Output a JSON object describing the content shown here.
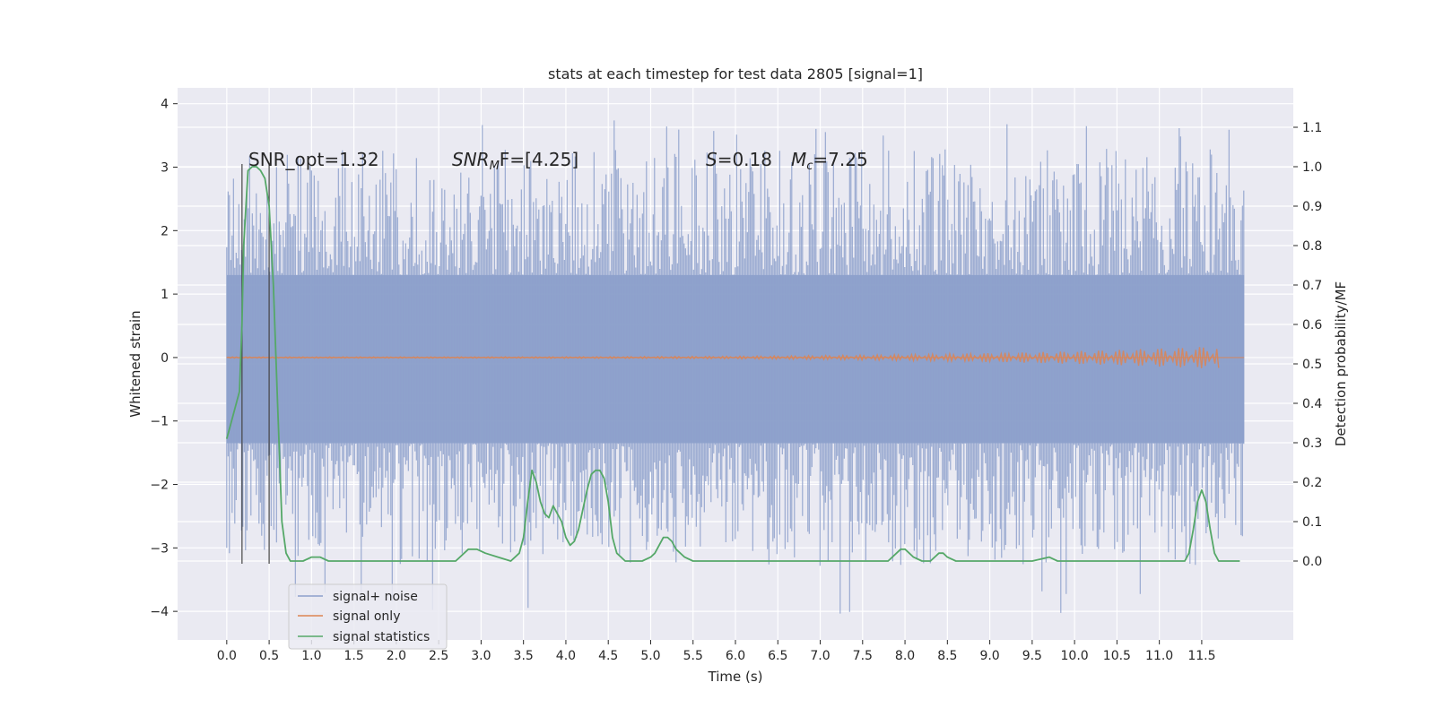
{
  "chart_data": {
    "type": "line",
    "title": "stats at each timestep for test data 2805 [signal=1]",
    "xlabel": "Time (s)",
    "ylabel": "Whitened strain",
    "ylabel_right": "Detection probability/MF",
    "xlim": [
      -0.58,
      12.58
    ],
    "ylim": [
      -4.45,
      4.25
    ],
    "ylim_right": [
      -0.2,
      1.2
    ],
    "grid": true,
    "legend_placement": "lower-left",
    "x_ticks": [
      "0.0",
      "0.5",
      "1.0",
      "1.5",
      "2.0",
      "2.5",
      "3.0",
      "3.5",
      "4.0",
      "4.5",
      "5.0",
      "5.5",
      "6.0",
      "6.5",
      "7.0",
      "7.5",
      "8.0",
      "8.5",
      "9.0",
      "9.5",
      "10.0",
      "10.5",
      "11.0",
      "11.5"
    ],
    "x_tick_values": [
      0,
      0.5,
      1,
      1.5,
      2,
      2.5,
      3,
      3.5,
      4,
      4.5,
      5,
      5.5,
      6,
      6.5,
      7,
      7.5,
      8,
      8.5,
      9,
      9.5,
      10,
      10.5,
      11,
      11.5
    ],
    "y_ticks": [
      "4",
      "3",
      "2",
      "1",
      "0",
      "−1",
      "−2",
      "−3",
      "−4"
    ],
    "y_tick_values": [
      4,
      3,
      2,
      1,
      0,
      -1,
      -2,
      -3,
      -4
    ],
    "y_right_ticks": [
      "1.1",
      "1.0",
      "0.9",
      "0.8",
      "0.7",
      "0.6",
      "0.5",
      "0.4",
      "0.3",
      "0.2",
      "0.1",
      "0.0"
    ],
    "y_right_tick_values": [
      1.1,
      1.0,
      0.9,
      0.8,
      0.7,
      0.6,
      0.5,
      0.4,
      0.3,
      0.2,
      0.1,
      0.0
    ],
    "annotations": {
      "snr_opt": "SNR_opt=1.32",
      "snr_mf_main": "SNR",
      "snr_mf_sub": "M",
      "snr_mf_rest": "F=[4.25]",
      "s_label": "S",
      "s_value": "=0.18",
      "mc_label": "M",
      "mc_sub": "c",
      "mc_value": "=7.25"
    },
    "vertical_markers_x": [
      0.18,
      0.5
    ],
    "series": [
      {
        "name": "signal+ noise",
        "color": "#8da0cb",
        "x_range": [
          0,
          12
        ],
        "band_low": -1.35,
        "band_high": 1.3,
        "spike_max": 3.85,
        "spike_min": -4.05
      },
      {
        "name": "signal only",
        "color": "#dd8452",
        "x_range": [
          0,
          11.7
        ],
        "start_amplitude": 0.01,
        "end_amplitude": 0.18
      },
      {
        "name": "signal statistics",
        "color": "#55a868",
        "axis": "right",
        "x": [
          0,
          0.05,
          0.1,
          0.15,
          0.18,
          0.2,
          0.25,
          0.3,
          0.35,
          0.4,
          0.45,
          0.5,
          0.55,
          0.6,
          0.65,
          0.7,
          0.75,
          0.8,
          0.9,
          1.0,
          1.1,
          1.2,
          1.5,
          2.0,
          2.5,
          2.7,
          2.85,
          2.95,
          3.05,
          3.2,
          3.35,
          3.45,
          3.5,
          3.55,
          3.6,
          3.65,
          3.7,
          3.75,
          3.8,
          3.85,
          3.9,
          3.95,
          4.0,
          4.05,
          4.1,
          4.15,
          4.2,
          4.25,
          4.3,
          4.35,
          4.4,
          4.45,
          4.5,
          4.55,
          4.6,
          4.7,
          4.8,
          4.9,
          5.0,
          5.05,
          5.1,
          5.15,
          5.2,
          5.25,
          5.3,
          5.4,
          5.5,
          5.6,
          5.7,
          5.8,
          6.0,
          6.2,
          6.5,
          6.8,
          7.0,
          7.2,
          7.5,
          7.7,
          7.8,
          7.9,
          7.95,
          8.0,
          8.05,
          8.1,
          8.2,
          8.3,
          8.4,
          8.45,
          8.5,
          8.6,
          8.8,
          9.0,
          9.2,
          9.3,
          9.4,
          9.5,
          9.7,
          9.8,
          9.9,
          10.0,
          10.3,
          10.6,
          10.9,
          11.0,
          11.1,
          11.2,
          11.25,
          11.3,
          11.35,
          11.4,
          11.45,
          11.5,
          11.55,
          11.6,
          11.65,
          11.7,
          11.8,
          11.95
        ],
        "y": [
          0.31,
          0.35,
          0.39,
          0.43,
          0.6,
          0.8,
          0.99,
          1.0,
          1.0,
          0.99,
          0.97,
          0.9,
          0.7,
          0.4,
          0.1,
          0.02,
          0.0,
          0.0,
          0.0,
          0.01,
          0.01,
          0.0,
          0.0,
          0.0,
          0.0,
          0.0,
          0.03,
          0.03,
          0.02,
          0.01,
          0.0,
          0.02,
          0.06,
          0.15,
          0.23,
          0.2,
          0.15,
          0.12,
          0.11,
          0.14,
          0.12,
          0.1,
          0.06,
          0.04,
          0.05,
          0.08,
          0.13,
          0.18,
          0.22,
          0.23,
          0.23,
          0.21,
          0.15,
          0.06,
          0.02,
          0.0,
          0.0,
          0.0,
          0.01,
          0.02,
          0.04,
          0.06,
          0.06,
          0.05,
          0.03,
          0.01,
          0.0,
          0.0,
          0.0,
          0.0,
          0.0,
          0.0,
          0.0,
          0.0,
          0.0,
          0.0,
          0.0,
          0.0,
          0.0,
          0.02,
          0.03,
          0.03,
          0.02,
          0.01,
          0.0,
          0.0,
          0.02,
          0.02,
          0.01,
          0.0,
          0.0,
          0.0,
          0.0,
          0.0,
          0.0,
          0.0,
          0.01,
          0.0,
          0.0,
          0.0,
          0.0,
          0.0,
          0.0,
          0.0,
          0.0,
          0.0,
          0.0,
          0.0,
          0.02,
          0.08,
          0.15,
          0.18,
          0.15,
          0.08,
          0.02,
          0.0,
          0.0,
          0.0
        ]
      }
    ]
  }
}
